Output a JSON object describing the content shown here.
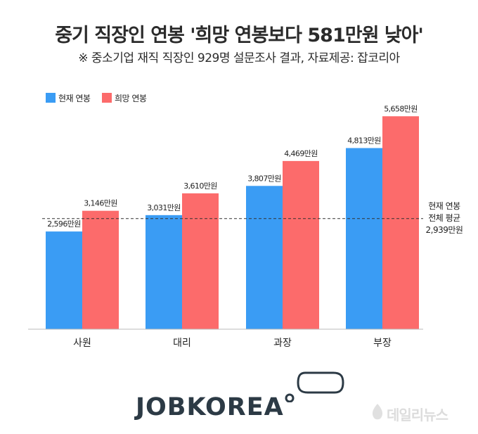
{
  "header": {
    "title": "중기 직장인 연봉 '희망 연봉보다 581만원 낮아'",
    "subtitle": "※ 중소기업 재직 직장인 929명 설문조사 결과, 자료제공: 잡코리아"
  },
  "chart_data": {
    "type": "bar",
    "title": "중기 직장인 연봉 '희망 연봉보다 581만원 낮아'",
    "subtitle": "※ 중소기업 재직 직장인 929명 설문조사 결과, 자료제공: 잡코리아",
    "categories": [
      "사원",
      "대리",
      "과장",
      "부장"
    ],
    "series": [
      {
        "name": "현재 연봉",
        "values": [
          2596,
          3031,
          3807,
          4813
        ],
        "labels": [
          "2,596만원",
          "3,031만원",
          "3,807만원",
          "4,813만원"
        ],
        "color": "#3a9cf4"
      },
      {
        "name": "희망 연봉",
        "values": [
          3146,
          3610,
          4469,
          5658
        ],
        "labels": [
          "3,146만원",
          "3,610만원",
          "4,469만원",
          "5,658만원"
        ],
        "color": "#fc6b6b"
      }
    ],
    "ylim": [
      0,
      5850
    ],
    "grid": false,
    "legend": "top-left",
    "reference_line": {
      "value": 2939,
      "label_lines": [
        "현재 연봉",
        "전체 평균",
        "2,939만원"
      ]
    }
  },
  "brand": {
    "logo_text": "JOBKOREA",
    "watermark": "데일리뉴스"
  }
}
